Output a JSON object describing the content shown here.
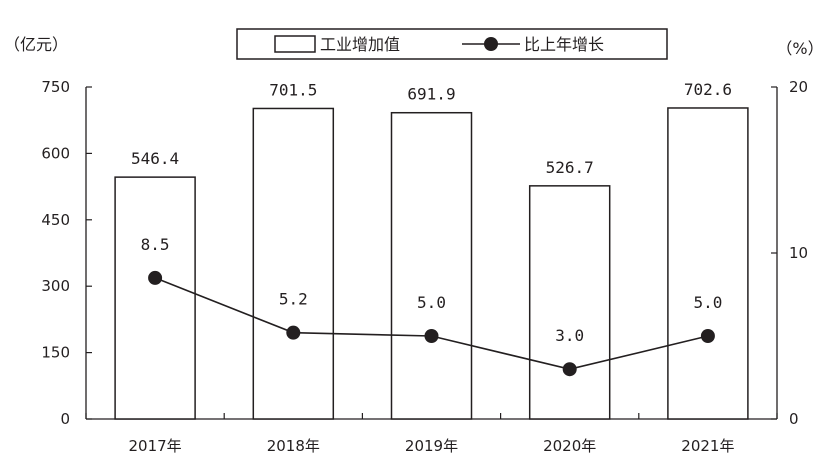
{
  "chart_data": {
    "type": "bar",
    "left_axis_unit": "（亿元）",
    "right_axis_unit": "（%）",
    "categories": [
      "2017年",
      "2018年",
      "2019年",
      "2020年",
      "2021年"
    ],
    "series": [
      {
        "name": "工业增加值",
        "type": "bar",
        "axis": "left",
        "values": [
          546.4,
          701.5,
          691.9,
          526.7,
          702.6
        ],
        "labels": [
          "546.4",
          "701.5",
          "691.9",
          "526.7",
          "702.6"
        ]
      },
      {
        "name": "比上年增长",
        "type": "line",
        "axis": "right",
        "values": [
          8.5,
          5.2,
          5.0,
          3.0,
          5.0
        ],
        "labels": [
          "8.5",
          "5.2",
          "5.0",
          "3.0",
          "5.0"
        ]
      }
    ],
    "left_axis": {
      "ylim": [
        0,
        750
      ],
      "ticks": [
        0,
        150,
        300,
        450,
        600,
        750
      ],
      "tick_labels": [
        "0",
        "150",
        "300",
        "450",
        "600",
        "750"
      ]
    },
    "right_axis": {
      "ylim": [
        0,
        20
      ],
      "ticks": [
        0,
        10,
        20
      ],
      "tick_labels": [
        "0",
        "10",
        "20"
      ]
    },
    "grid": false,
    "legend_position": "top-center"
  }
}
